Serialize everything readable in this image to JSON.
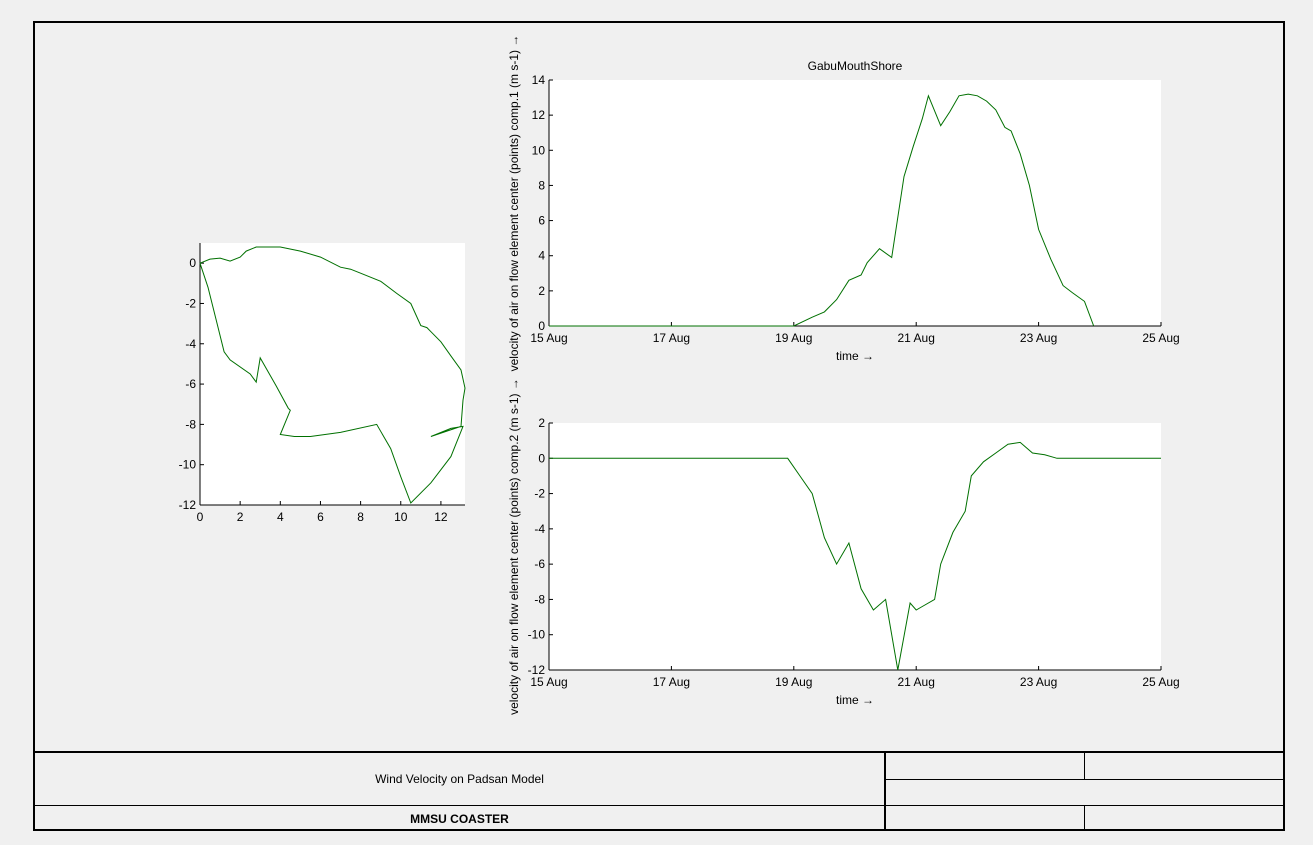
{
  "title_block": {
    "description": "Wind Velocity on Padsan Model",
    "organization": "MMSU COASTER"
  },
  "colors": {
    "series": "#007000",
    "axes_bg": "#ffffff",
    "figure_bg": "#f0f0f0"
  },
  "chart_data": [
    {
      "id": "scatter",
      "type": "line",
      "title": "",
      "xlabel": "",
      "ylabel": "",
      "xlim": [
        0,
        13.2
      ],
      "ylim": [
        -12,
        1
      ],
      "xticks": [
        0,
        2,
        4,
        6,
        8,
        10,
        12
      ],
      "yticks": [
        -12,
        -10,
        -8,
        -6,
        -4,
        -2,
        0
      ],
      "grid": false,
      "series": [
        {
          "x": [
            0,
            0.5,
            1,
            1.5,
            2,
            2.3,
            2.8,
            3.3,
            4,
            5,
            6,
            7,
            7.5,
            8,
            9,
            9.8,
            10.5,
            11,
            11.3,
            11.5,
            12,
            12.5,
            13,
            13.2,
            13.1,
            13,
            11.5,
            12.5,
            13.1,
            12.5,
            11.5,
            10.5,
            10,
            9.5,
            8.8,
            7,
            5.5,
            4.7,
            4,
            4.5,
            4.4,
            3.8,
            3,
            2.8,
            2.5,
            1.5,
            1.2,
            0.8,
            0.4,
            0
          ],
          "y": [
            0,
            0.2,
            0.25,
            0.1,
            0.3,
            0.6,
            0.8,
            0.8,
            0.8,
            0.6,
            0.3,
            -0.2,
            -0.3,
            -0.5,
            -0.9,
            -1.5,
            -2,
            -3.1,
            -3.2,
            -3.4,
            -3.9,
            -4.6,
            -5.3,
            -6.2,
            -6.8,
            -8.1,
            -8.6,
            -8.2,
            -8.1,
            -9.6,
            -10.9,
            -11.9,
            -10.6,
            -9.2,
            -8.0,
            -8.4,
            -8.6,
            -8.6,
            -8.5,
            -7.3,
            -7.2,
            -6.1,
            -4.7,
            -5.9,
            -5.5,
            -4.8,
            -4.4,
            -2.8,
            -1.2,
            0
          ]
        }
      ]
    },
    {
      "id": "comp1",
      "type": "line",
      "title": "GabuMouthShore",
      "xlabel": "time →",
      "ylabel": "velocity of air on flow element center (points) comp.1 (m s-1) →",
      "x_categories": [
        "15 Aug",
        "17 Aug",
        "19 Aug",
        "21 Aug",
        "23 Aug",
        "25 Aug"
      ],
      "xlim": [
        15,
        25
      ],
      "ylim": [
        0,
        14
      ],
      "yticks": [
        0,
        2,
        4,
        6,
        8,
        10,
        12,
        14
      ],
      "grid": false,
      "series": [
        {
          "x": [
            15,
            19,
            19.3,
            19.5,
            19.7,
            19.9,
            20.1,
            20.2,
            20.4,
            20.6,
            20.8,
            20.95,
            21.1,
            21.2,
            21.4,
            21.55,
            21.7,
            21.85,
            22,
            22.15,
            22.3,
            22.45,
            22.55,
            22.7,
            22.85,
            23.0,
            23.2,
            23.4,
            23.55,
            23.75,
            23.9
          ],
          "y": [
            0,
            0,
            0.5,
            0.8,
            1.5,
            2.6,
            2.9,
            3.6,
            4.4,
            3.9,
            8.5,
            10.2,
            11.8,
            13.1,
            11.4,
            12.2,
            13.1,
            13.2,
            13.1,
            12.8,
            12.3,
            11.3,
            11.1,
            9.8,
            8.0,
            5.5,
            3.8,
            2.3,
            1.9,
            1.4,
            0
          ]
        }
      ]
    },
    {
      "id": "comp2",
      "type": "line",
      "title": "",
      "xlabel": "time →",
      "ylabel": "velocity of air on flow element center (points) comp.2 (m s-1) →",
      "x_categories": [
        "15 Aug",
        "17 Aug",
        "19 Aug",
        "21 Aug",
        "23 Aug",
        "25 Aug"
      ],
      "xlim": [
        15,
        25
      ],
      "ylim": [
        -12,
        2
      ],
      "yticks": [
        -12,
        -10,
        -8,
        -6,
        -4,
        -2,
        0,
        2
      ],
      "grid": false,
      "series": [
        {
          "x": [
            15,
            18.9,
            19.1,
            19.3,
            19.5,
            19.7,
            19.9,
            20.1,
            20.3,
            20.5,
            20.7,
            20.9,
            21,
            21.1,
            21.3,
            21.4,
            21.6,
            21.8,
            21.9,
            22.1,
            22.3,
            22.5,
            22.7,
            22.9,
            23.1,
            23.3,
            23.5,
            23.7,
            23.8,
            23.95,
            24.2,
            25
          ],
          "y": [
            0,
            0,
            -1,
            -2,
            -4.5,
            -6,
            -4.8,
            -7.4,
            -8.6,
            -8,
            -12,
            -8.2,
            -8.6,
            -8.4,
            -8.0,
            -6.0,
            -4.2,
            -3.0,
            -1.0,
            -0.2,
            0.3,
            0.8,
            0.9,
            0.3,
            0.2,
            0,
            0,
            0,
            0,
            0,
            0,
            0
          ]
        }
      ]
    }
  ]
}
